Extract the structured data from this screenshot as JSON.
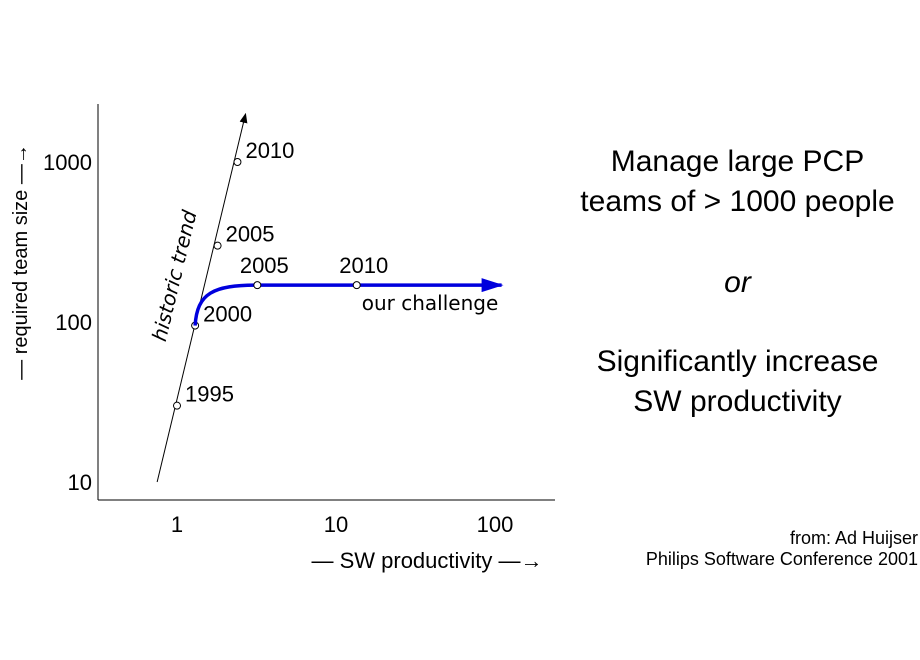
{
  "chart_data": {
    "type": "line",
    "scale": "log-log",
    "xlabel": "SW productivity",
    "ylabel": "required team size",
    "x_ticks": [
      {
        "value": 1,
        "label": "1"
      },
      {
        "value": 10,
        "label": "10"
      },
      {
        "value": 100,
        "label": "100"
      }
    ],
    "y_ticks": [
      {
        "value": 10,
        "label": "10"
      },
      {
        "value": 100,
        "label": "100"
      },
      {
        "value": 1000,
        "label": "1000"
      }
    ],
    "xlim": [
      0.28,
      220
    ],
    "ylim": [
      8.5,
      2400
    ],
    "series": [
      {
        "name": "historic trend",
        "color": "#000000",
        "line": [
          {
            "x": 0.75,
            "y": 10
          },
          {
            "x": 2.7,
            "y": 2000
          }
        ],
        "points": [
          {
            "x": 1.0,
            "y": 30,
            "label": "1995"
          },
          {
            "x": 1.3,
            "y": 95,
            "label": "2000"
          },
          {
            "x": 1.8,
            "y": 300,
            "label": "2005"
          },
          {
            "x": 2.4,
            "y": 1000,
            "label": "2010"
          }
        ]
      },
      {
        "name": "our challenge",
        "color": "#0000dd",
        "points": [
          {
            "x": 1.3,
            "y": 95
          },
          {
            "x": 3.2,
            "y": 170,
            "label": "2005"
          },
          {
            "x": 13.5,
            "y": 170,
            "label": "2010"
          }
        ],
        "arrow_end": {
          "x": 110,
          "y": 170
        }
      }
    ]
  },
  "text": {
    "line1": "Manage large PCP",
    "line2": "teams of > 1000 people",
    "or": "or",
    "line3": "Significantly increase",
    "line4": "SW productivity",
    "credit1": "from: Ad Huijser",
    "credit2": "Philips Software Conference 2001"
  }
}
